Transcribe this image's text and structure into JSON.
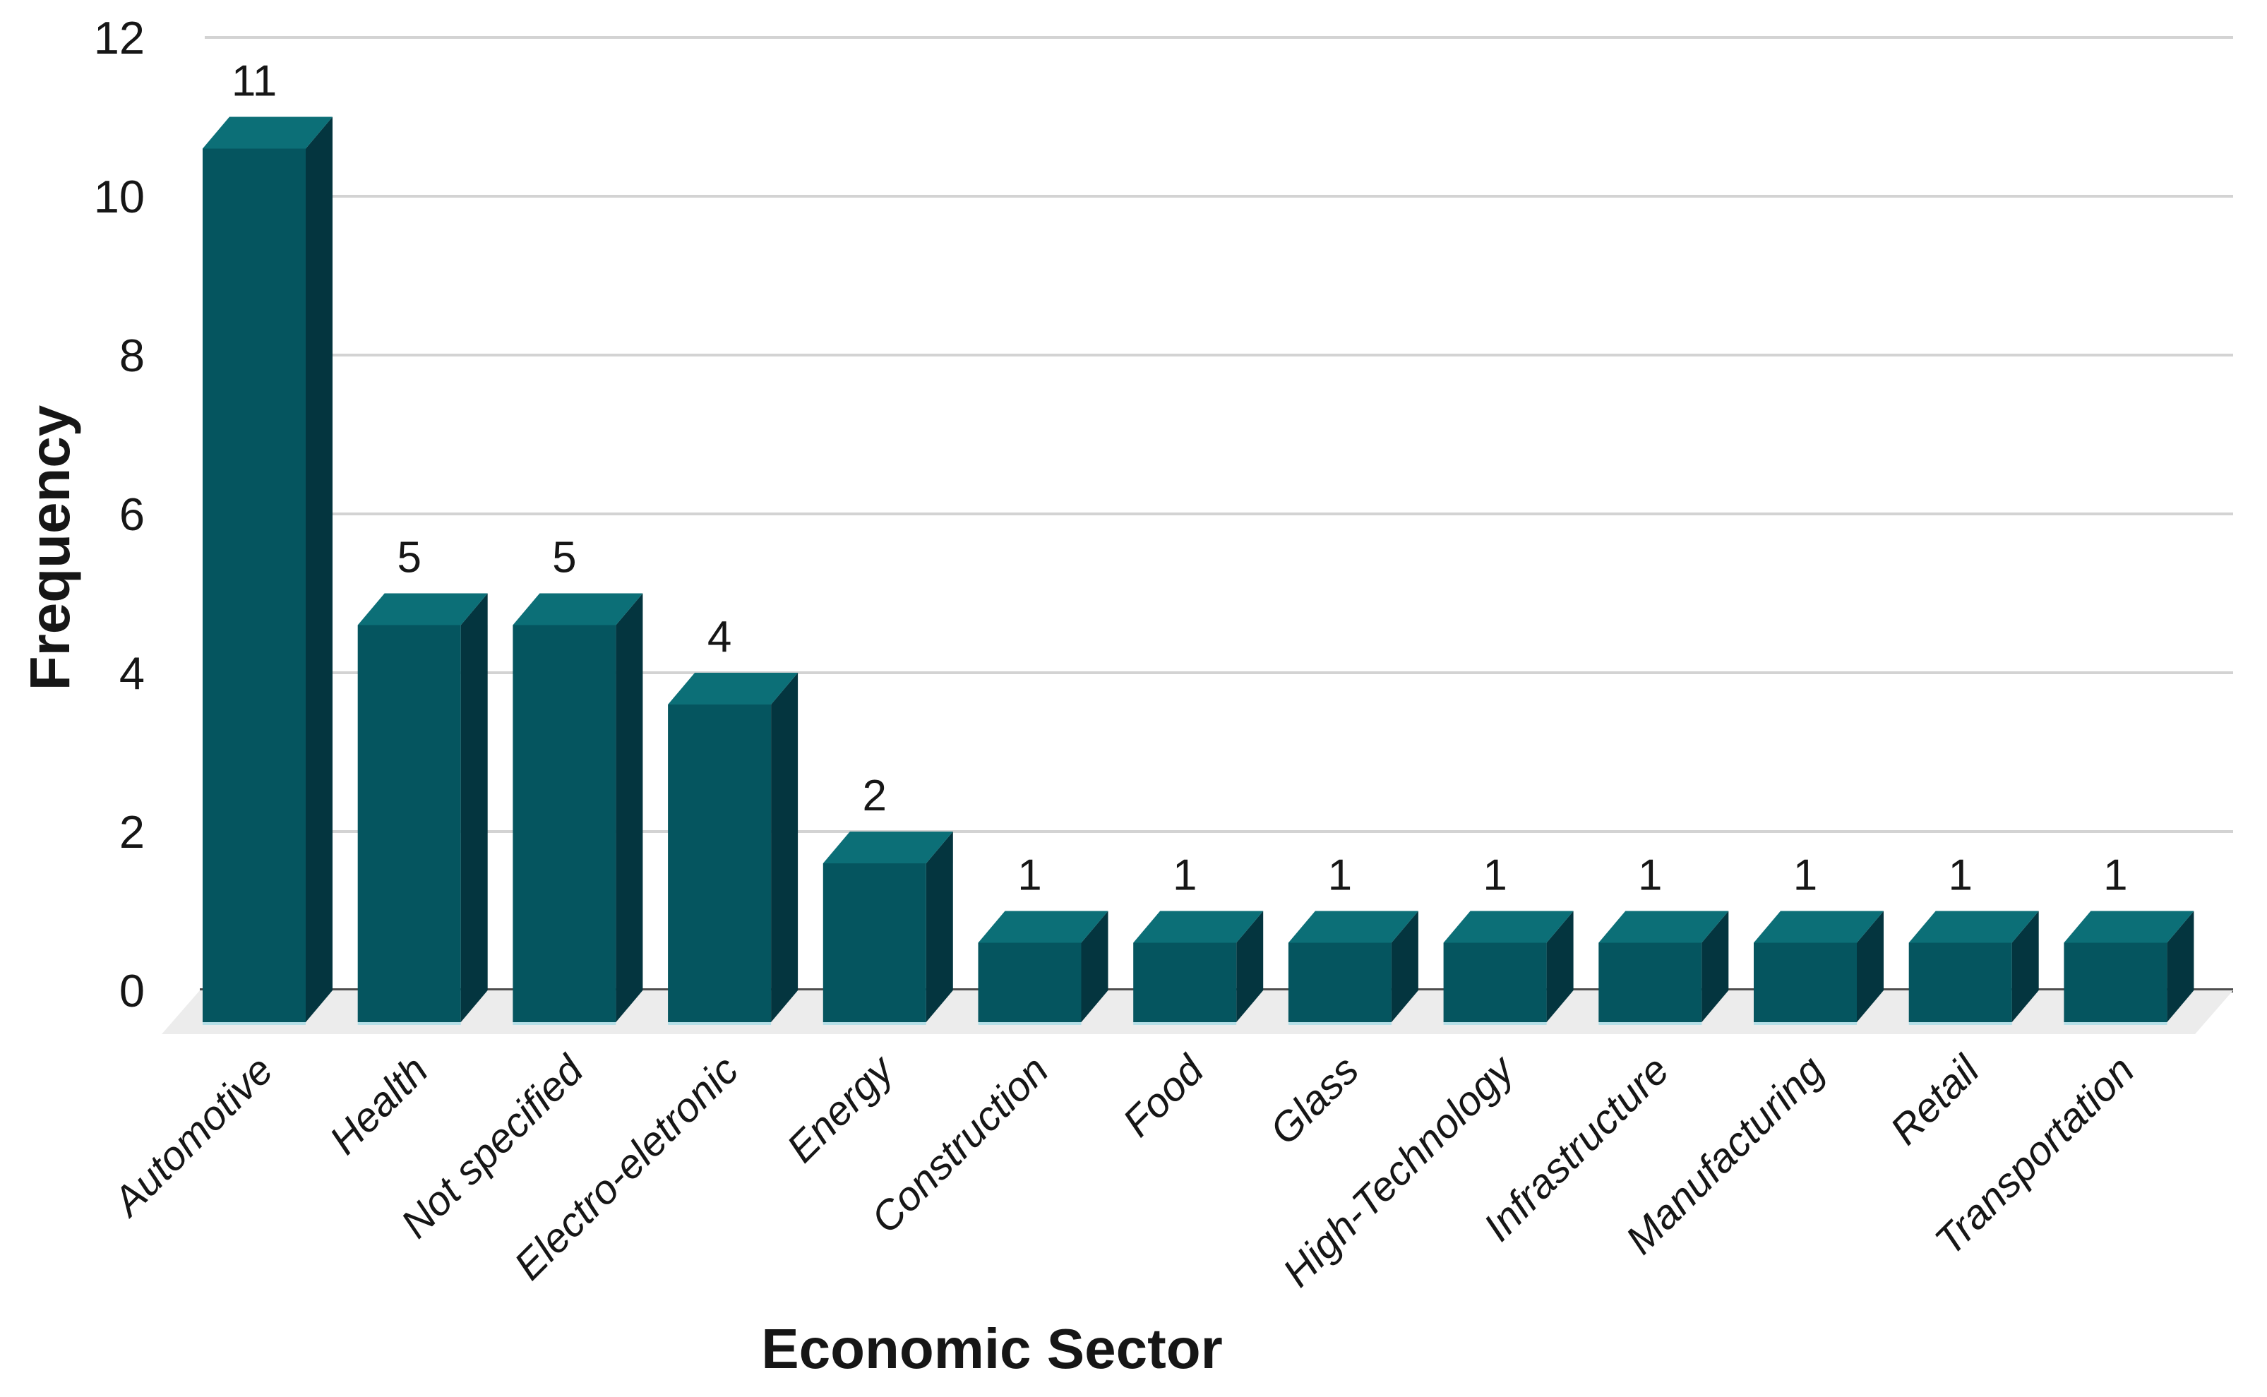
{
  "chart_data": {
    "type": "bar",
    "variant": "3d-column",
    "title": "",
    "xlabel": "Economic Sector",
    "ylabel": "Frequency",
    "categories": [
      "Automotive",
      "Health",
      "Not specified",
      "Electro-eletronic",
      "Energy",
      "Construction",
      "Food",
      "Glass",
      "High-Technology",
      "Infrastructure",
      "Manufacturing",
      "Retail",
      "Transportation"
    ],
    "values": [
      11,
      5,
      5,
      4,
      2,
      1,
      1,
      1,
      1,
      1,
      1,
      1,
      1
    ],
    "value_labels": [
      "11",
      "5",
      "5",
      "4",
      "2",
      "1",
      "1",
      "1",
      "1",
      "1",
      "1",
      "1",
      "1"
    ],
    "yticks": [
      0,
      2,
      4,
      6,
      8,
      10,
      12
    ],
    "ylim": [
      0,
      12
    ],
    "grid": true,
    "legend": "none",
    "colors": {
      "bar_front": "#05555f",
      "bar_top": "#0c6f77",
      "bar_side": "#04353f",
      "bar_bottom_glow": "#a8dde6",
      "floor": "#ececec",
      "gridline": "#d3d3d3",
      "baseline": "#4d4d4d",
      "text": "#161616"
    }
  }
}
